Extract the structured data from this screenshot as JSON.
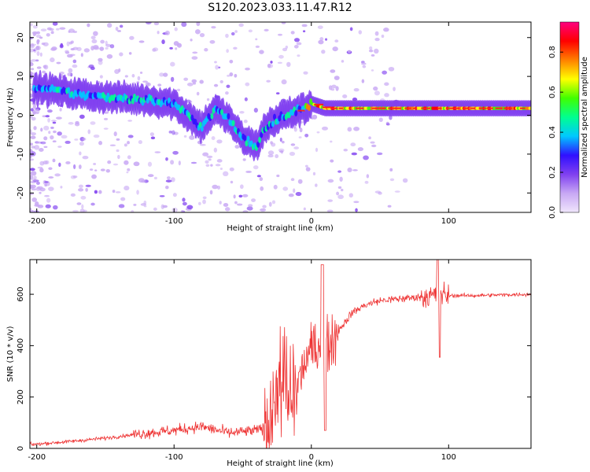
{
  "title": "S120.2023.033.11.47.R12",
  "spectrogram": {
    "type": "heatmap",
    "xlabel": "Height of straight line (km)",
    "ylabel": "Frequency (Hz)",
    "xlim": [
      -205,
      160
    ],
    "ylim": [
      -25,
      24
    ],
    "xticks": [
      -200,
      -100,
      0,
      100
    ],
    "yticks": [
      -20,
      -10,
      0,
      10,
      20
    ],
    "xtick_labels": [
      "-200",
      "-100",
      "0",
      "100"
    ],
    "ytick_labels": [
      "-20",
      "-10",
      "0",
      "10",
      "20"
    ],
    "colorbar": {
      "label": "Normalized spectral amplitude",
      "ticks": [
        0,
        0.2,
        0.4,
        0.6,
        0.8
      ],
      "tick_labels": [
        "0.0",
        "0.2",
        "0.4",
        "0.6",
        "0.8"
      ],
      "range": [
        0,
        0.95
      ],
      "colormap": [
        "#f0e6fc",
        "#c8a8f4",
        "#8040f0",
        "#3010ff",
        "#00c8ff",
        "#00ff90",
        "#40ff00",
        "#ffff00",
        "#ff8000",
        "#ff0000",
        "#ff0080"
      ]
    },
    "ridge": {
      "x": [
        -200,
        -180,
        -160,
        -140,
        -120,
        -100,
        -90,
        -80,
        -70,
        -60,
        -50,
        -40,
        -35,
        -30,
        -25,
        -20,
        -10,
        -5,
        0,
        10,
        50,
        100,
        160
      ],
      "y": [
        7,
        6,
        5,
        4.5,
        4,
        3,
        0,
        -3,
        1.5,
        -1,
        -6,
        -8,
        -4,
        -2,
        -1,
        0,
        1.2,
        1.5,
        3,
        1.8,
        1.8,
        1.8,
        1.8
      ]
    }
  },
  "snr": {
    "type": "line",
    "xlabel": "Height of straight line (km)",
    "ylabel": "SNR (10 * v/v)",
    "xlim": [
      -205,
      160
    ],
    "ylim": [
      0,
      735
    ],
    "xticks": [
      -200,
      -100,
      0,
      100
    ],
    "yticks": [
      0,
      200,
      400,
      600
    ],
    "xtick_labels": [
      "-200",
      "-100",
      "0",
      "100"
    ],
    "ytick_labels": [
      "0",
      "200",
      "400",
      "600"
    ],
    "color": "#ee3333",
    "trend": {
      "x": [
        -205,
        -180,
        -150,
        -120,
        -100,
        -80,
        -60,
        -40,
        -30,
        -25,
        -20,
        -15,
        -10,
        -5,
        0,
        5,
        10,
        15,
        20,
        30,
        40,
        50,
        70,
        90,
        100,
        120,
        140,
        160
      ],
      "y": [
        15,
        25,
        40,
        60,
        70,
        85,
        60,
        70,
        90,
        200,
        250,
        150,
        250,
        330,
        380,
        400,
        390,
        420,
        460,
        530,
        560,
        575,
        585,
        595,
        595,
        595,
        598,
        600
      ]
    }
  }
}
